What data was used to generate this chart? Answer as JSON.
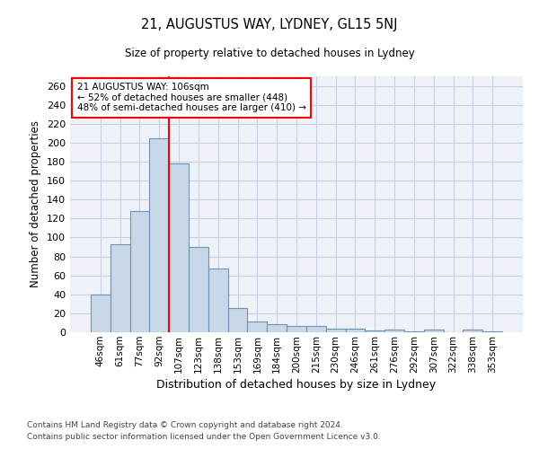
{
  "title1": "21, AUGUSTUS WAY, LYDNEY, GL15 5NJ",
  "title2": "Size of property relative to detached houses in Lydney",
  "xlabel": "Distribution of detached houses by size in Lydney",
  "ylabel": "Number of detached properties",
  "categories": [
    "46sqm",
    "61sqm",
    "77sqm",
    "92sqm",
    "107sqm",
    "123sqm",
    "138sqm",
    "153sqm",
    "169sqm",
    "184sqm",
    "200sqm",
    "215sqm",
    "230sqm",
    "246sqm",
    "261sqm",
    "276sqm",
    "292sqm",
    "307sqm",
    "322sqm",
    "338sqm",
    "353sqm"
  ],
  "values": [
    40,
    93,
    128,
    205,
    178,
    90,
    67,
    26,
    11,
    9,
    7,
    7,
    4,
    4,
    2,
    3,
    1,
    3,
    0,
    3,
    1
  ],
  "bar_color": "#c8d8e8",
  "bar_edge_color": "#7090b0",
  "bar_linewidth": 0.8,
  "property_line_label": "21 AUGUSTUS WAY: 106sqm",
  "annotation_smaller": "← 52% of detached houses are smaller (448)",
  "annotation_larger": "48% of semi-detached houses are larger (410) →",
  "annotation_box_color": "white",
  "annotation_box_edge_color": "red",
  "line_color": "red",
  "ylim": [
    0,
    270
  ],
  "yticks": [
    0,
    20,
    40,
    60,
    80,
    100,
    120,
    140,
    160,
    180,
    200,
    220,
    240,
    260
  ],
  "grid_color": "#c8d0e0",
  "background_color": "#eef2f8",
  "footer1": "Contains HM Land Registry data © Crown copyright and database right 2024.",
  "footer2": "Contains public sector information licensed under the Open Government Licence v3.0."
}
